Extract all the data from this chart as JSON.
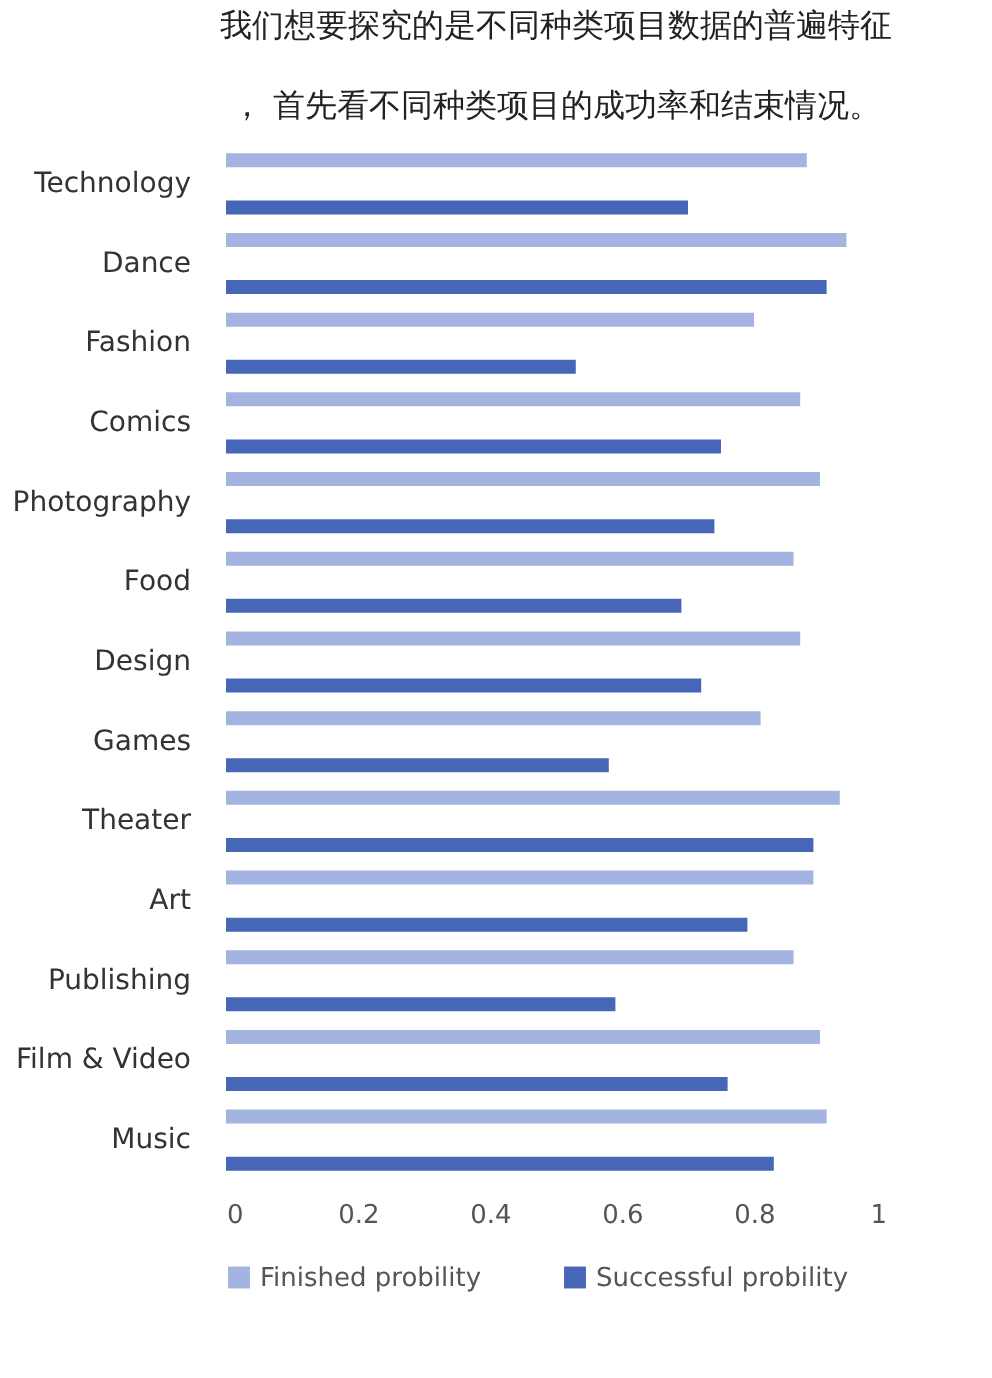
{
  "chart_data": {
    "type": "bar",
    "orientation": "horizontal",
    "title": "我们想要探究的是不同种类项目数据的普遍特征， 首先看不同种类项目的成功率和结束情况。",
    "categories": [
      "Technology",
      "Dance",
      "Fashion",
      "Comics",
      "Photography",
      "Food",
      "Design",
      "Games",
      "Theater",
      "Art",
      "Publishing",
      "Film & Video",
      "Music"
    ],
    "series": [
      {
        "name": "Finished probility",
        "color": "#a3b4e0",
        "values": [
          0.88,
          0.94,
          0.8,
          0.87,
          0.9,
          0.86,
          0.87,
          0.81,
          0.93,
          0.89,
          0.86,
          0.9,
          0.91
        ]
      },
      {
        "name": "Successful probility",
        "color": "#4667b8",
        "values": [
          0.7,
          0.91,
          0.53,
          0.75,
          0.74,
          0.69,
          0.72,
          0.58,
          0.89,
          0.79,
          0.59,
          0.76,
          0.83
        ]
      }
    ],
    "xlim": [
      0,
      1
    ],
    "xticks": [
      0,
      0.2,
      0.4,
      0.6,
      0.8,
      1
    ],
    "grid": false,
    "legend": "bottom"
  }
}
